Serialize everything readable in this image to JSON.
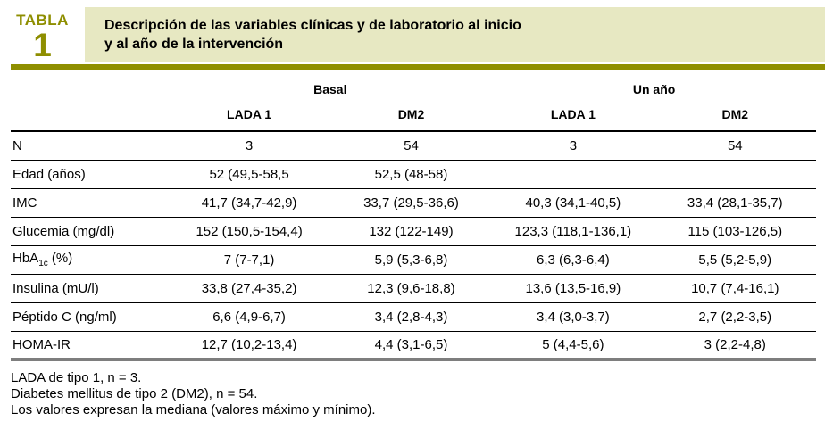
{
  "colors": {
    "accent_olive": "#8f8f00",
    "title_background": "#e7e8c2",
    "bottom_border_gray": "#7e7e7e",
    "text": "#000000"
  },
  "header": {
    "table_word": "TABLA",
    "table_number": "1",
    "title_line1": "Descripción de las variables clínicas y de laboratorio al inicio",
    "title_line2": "y al año de la intervención"
  },
  "table": {
    "group_headers": [
      "Basal",
      "Un año"
    ],
    "column_headers": [
      "LADA 1",
      "DM2",
      "LADA 1",
      "DM2"
    ],
    "rows": [
      {
        "label": "N",
        "values": [
          "3",
          "54",
          "3",
          "54"
        ]
      },
      {
        "label": "Edad (años)",
        "values": [
          "52 (49,5-58,5",
          "52,5 (48-58)",
          "",
          ""
        ]
      },
      {
        "label": "IMC",
        "values": [
          "41,7 (34,7-42,9)",
          "33,7 (29,5-36,6)",
          "40,3 (34,1-40,5)",
          "33,4 (28,1-35,7)"
        ]
      },
      {
        "label": "Glucemia (mg/dl)",
        "values": [
          "152 (150,5-154,4)",
          "132 (122-149)",
          "123,3 (118,1-136,1)",
          "115 (103-126,5)"
        ]
      },
      {
        "label": "HbA1c (%)",
        "label_parts": {
          "base": "HbA",
          "sub": "1c",
          "rest": " (%)"
        },
        "values": [
          "7 (7-7,1)",
          "5,9 (5,3-6,8)",
          "6,3 (6,3-6,4)",
          "5,5 (5,2-5,9)"
        ]
      },
      {
        "label": "Insulina (mU/l)",
        "values": [
          "33,8 (27,4-35,2)",
          "12,3 (9,6-18,8)",
          "13,6 (13,5-16,9)",
          "10,7 (7,4-16,1)"
        ]
      },
      {
        "label": "Péptido C (ng/ml)",
        "values": [
          "6,6 (4,9-6,7)",
          "3,4 (2,8-4,3)",
          "3,4 (3,0-3,7)",
          "2,7 (2,2-3,5)"
        ]
      },
      {
        "label": "HOMA-IR",
        "values": [
          "12,7 (10,2-13,4)",
          "4,4 (3,1-6,5)",
          "5 (4,4-5,6)",
          "3 (2,2-4,8)"
        ]
      }
    ]
  },
  "footnotes": [
    "LADA de tipo 1, n = 3.",
    "Diabetes mellitus de tipo 2 (DM2), n = 54.",
    "Los valores expresan la mediana (valores máximo y mínimo)."
  ]
}
